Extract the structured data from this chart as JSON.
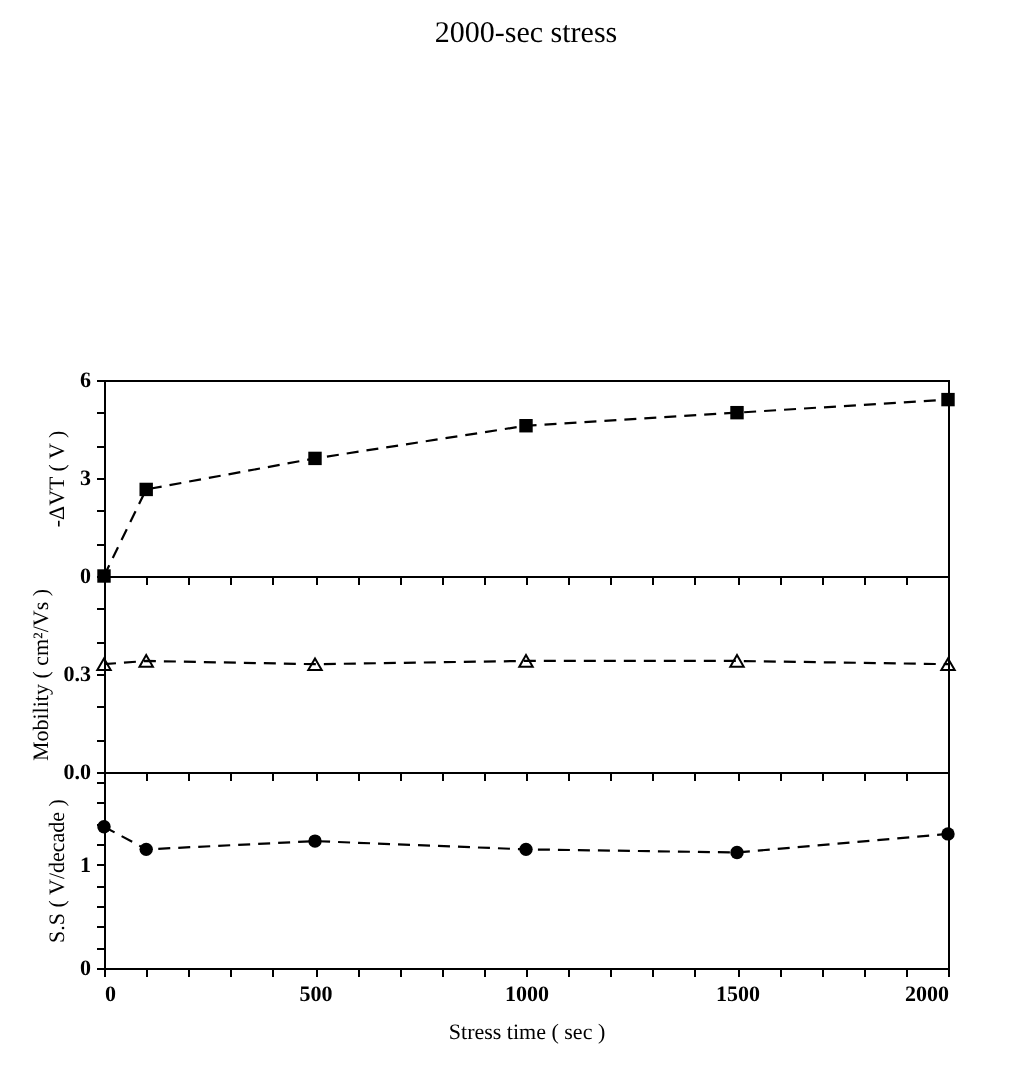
{
  "chart_data": [
    {
      "type": "line",
      "title": "2000-sec stress",
      "ylabel": "-ΔVT ( V )",
      "x": [
        0,
        100,
        500,
        1000,
        1500,
        2000
      ],
      "series": [
        {
          "color": "#000000",
          "values": [
            0,
            2.65,
            3.6,
            4.6,
            5.0,
            5.4
          ]
        }
      ],
      "xlim": [
        0,
        2000
      ],
      "xticks": [
        0,
        {
          "value": 100,
          "label": null
        },
        {
          "value": 200,
          "label": null
        },
        {
          "value": 300,
          "label": null
        },
        {
          "value": 400,
          "label": null
        },
        500,
        {
          "value": 600,
          "label": null
        },
        {
          "value": 700,
          "label": null
        },
        {
          "value": 800,
          "label": null
        },
        {
          "value": 900,
          "label": null
        },
        1000,
        {
          "value": 1100,
          "label": null
        },
        {
          "value": 1200,
          "label": null
        },
        {
          "value": 1300,
          "label": null
        },
        {
          "value": 1400,
          "label": null
        },
        1500,
        {
          "value": 1600,
          "label": null
        },
        {
          "value": 1700,
          "label": null
        },
        {
          "value": 1800,
          "label": null
        },
        {
          "value": 1900,
          "label": null
        },
        2000
      ],
      "ylim": [
        0,
        6
      ],
      "yticks": [
        0,
        {
          "value": 1,
          "label": null
        },
        {
          "value": 2,
          "label": null
        },
        3,
        {
          "value": 4,
          "label": null
        },
        {
          "value": 5,
          "label": null
        },
        6
      ],
      "marker": "square",
      "line_style": "dashed",
      "tick_labels": "y"
    },
    {
      "type": "line",
      "ylabel": "Mobility ( cm²/Vs )",
      "x": [
        0,
        100,
        500,
        1000,
        1500,
        2000
      ],
      "series": [
        {
          "color": "#000000",
          "values": [
            0.33,
            0.34,
            0.33,
            0.34,
            0.34,
            0.33
          ]
        }
      ],
      "xlim": [
        0,
        2000
      ],
      "xticks": [
        0,
        {
          "value": 100,
          "label": null
        },
        {
          "value": 200,
          "label": null
        },
        {
          "value": 300,
          "label": null
        },
        {
          "value": 400,
          "label": null
        },
        500,
        {
          "value": 600,
          "label": null
        },
        {
          "value": 700,
          "label": null
        },
        {
          "value": 800,
          "label": null
        },
        {
          "value": 900,
          "label": null
        },
        1000,
        {
          "value": 1100,
          "label": null
        },
        {
          "value": 1200,
          "label": null
        },
        {
          "value": 1300,
          "label": null
        },
        {
          "value": 1400,
          "label": null
        },
        1500,
        {
          "value": 1600,
          "label": null
        },
        {
          "value": 1700,
          "label": null
        },
        {
          "value": 1800,
          "label": null
        },
        {
          "value": 1900,
          "label": null
        },
        2000
      ],
      "ylim": [
        0,
        0.6
      ],
      "yticks": [
        {
          "value": 0,
          "label": "0.0"
        },
        {
          "value": 0.1,
          "label": null
        },
        {
          "value": 0.2,
          "label": null
        },
        0.3,
        {
          "value": 0.4,
          "label": null
        },
        {
          "value": 0.5,
          "label": null
        }
      ],
      "marker": "triangle",
      "line_style": "dashed",
      "tick_labels": "y"
    },
    {
      "type": "line",
      "ylabel": "S.S ( V/decade )",
      "xlabel": "Stress time ( sec )",
      "x": [
        0,
        100,
        500,
        1000,
        1500,
        2000
      ],
      "series": [
        {
          "color": "#000000",
          "values": [
            1.37,
            1.15,
            1.23,
            1.15,
            1.12,
            1.3
          ]
        }
      ],
      "xlim": [
        0,
        2000
      ],
      "xticks": [
        0,
        {
          "value": 100,
          "label": null
        },
        {
          "value": 200,
          "label": null
        },
        {
          "value": 300,
          "label": null
        },
        {
          "value": 400,
          "label": null
        },
        500,
        {
          "value": 600,
          "label": null
        },
        {
          "value": 700,
          "label": null
        },
        {
          "value": 800,
          "label": null
        },
        {
          "value": 900,
          "label": null
        },
        1000,
        {
          "value": 1100,
          "label": null
        },
        {
          "value": 1200,
          "label": null
        },
        {
          "value": 1300,
          "label": null
        },
        {
          "value": 1400,
          "label": null
        },
        1500,
        {
          "value": 1600,
          "label": null
        },
        {
          "value": 1700,
          "label": null
        },
        {
          "value": 1800,
          "label": null
        },
        {
          "value": 1900,
          "label": null
        },
        2000
      ],
      "ylim": [
        0,
        1.9
      ],
      "yticks": [
        0,
        {
          "value": 0.2,
          "label": null
        },
        {
          "value": 0.4,
          "label": null
        },
        {
          "value": 0.6,
          "label": null
        },
        {
          "value": 0.8,
          "label": null
        },
        1,
        {
          "value": 1.2,
          "label": null
        },
        {
          "value": 1.4,
          "label": null
        },
        {
          "value": 1.6,
          "label": null
        },
        {
          "value": 1.8,
          "label": null
        }
      ],
      "marker": "circle",
      "line_style": "dashed"
    }
  ]
}
